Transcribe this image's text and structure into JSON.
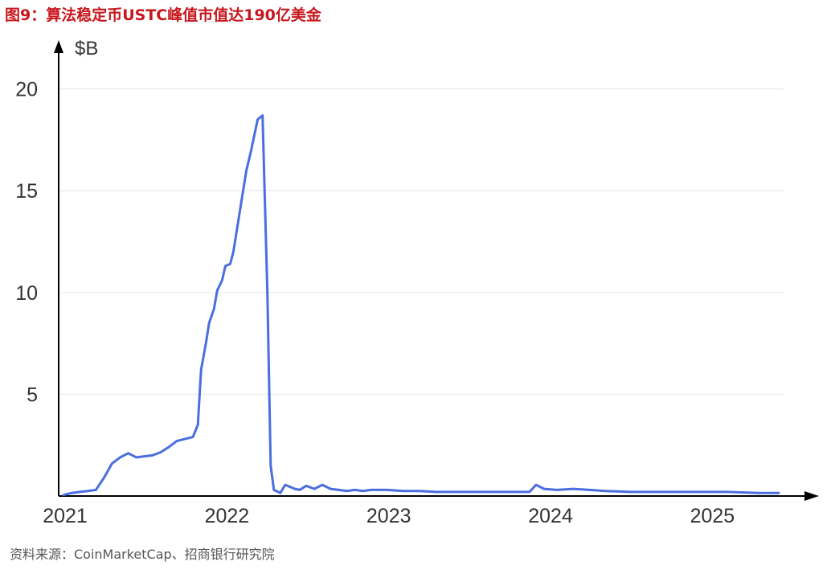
{
  "figure_title": "图9：算法稳定币USTC峰值市值达190亿美金",
  "source_note": "资料来源：CoinMarketCap、招商银行研究院",
  "colors": {
    "title": "#c8161d",
    "line": "#4a6ee0",
    "axis": "#000000",
    "grid": "#e6e6e6"
  },
  "chart_data": {
    "type": "line",
    "title": "",
    "xlabel": "",
    "ylabel": "$B",
    "xlim": [
      2020.97,
      2025.45
    ],
    "ylim": [
      0,
      22
    ],
    "y_ticks": [
      5,
      10,
      15,
      20
    ],
    "x_ticks": [
      {
        "value": 2021,
        "label": "2021"
      },
      {
        "value": 2022,
        "label": "2022"
      },
      {
        "value": 2023,
        "label": "2023"
      },
      {
        "value": 2024,
        "label": "2024"
      },
      {
        "value": 2025,
        "label": "2025"
      }
    ],
    "grid": true,
    "series": [
      {
        "x": [
          2021.0,
          2021.05,
          2021.1,
          2021.15,
          2021.2,
          2021.25,
          2021.3,
          2021.35,
          2021.4,
          2021.45,
          2021.5,
          2021.55,
          2021.6,
          2021.65,
          2021.7,
          2021.75,
          2021.8,
          2021.83,
          2021.85,
          2021.88,
          2021.9,
          2021.93,
          2021.95,
          2021.98,
          2022.0,
          2022.03,
          2022.05,
          2022.1,
          2022.13,
          2022.16,
          2022.2,
          2022.23,
          2022.26,
          2022.28,
          2022.3,
          2022.34,
          2022.37,
          2022.4,
          2022.43,
          2022.46,
          2022.5,
          2022.55,
          2022.6,
          2022.65,
          2022.7,
          2022.75,
          2022.8,
          2022.85,
          2022.9,
          2023.0,
          2023.1,
          2023.2,
          2023.3,
          2023.4,
          2023.5,
          2023.6,
          2023.7,
          2023.8,
          2023.88,
          2023.92,
          2023.97,
          2024.05,
          2024.15,
          2024.25,
          2024.35,
          2024.5,
          2024.7,
          2024.9,
          2025.1,
          2025.3,
          2025.42
        ],
        "y": [
          0.05,
          0.15,
          0.2,
          0.25,
          0.3,
          0.9,
          1.6,
          1.9,
          2.1,
          1.9,
          1.95,
          2.0,
          2.15,
          2.4,
          2.7,
          2.8,
          2.9,
          3.5,
          6.2,
          7.5,
          8.5,
          9.2,
          10.1,
          10.6,
          11.3,
          11.4,
          12.0,
          14.5,
          16.0,
          17.0,
          18.5,
          18.7,
          10.0,
          1.5,
          0.3,
          0.15,
          0.55,
          0.45,
          0.35,
          0.3,
          0.5,
          0.35,
          0.55,
          0.35,
          0.3,
          0.25,
          0.3,
          0.25,
          0.3,
          0.3,
          0.25,
          0.25,
          0.2,
          0.2,
          0.2,
          0.2,
          0.2,
          0.2,
          0.2,
          0.55,
          0.35,
          0.3,
          0.35,
          0.3,
          0.25,
          0.2,
          0.2,
          0.2,
          0.2,
          0.15,
          0.15
        ]
      }
    ]
  }
}
